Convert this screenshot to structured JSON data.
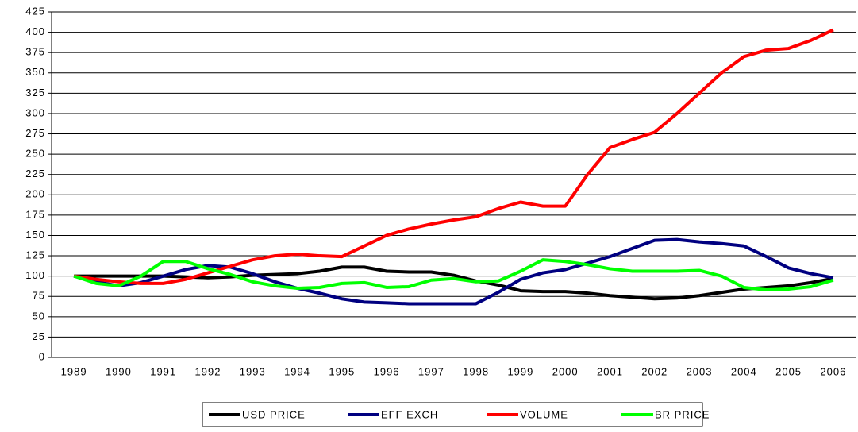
{
  "chart_data": {
    "type": "line",
    "x": [
      1989,
      1989.5,
      1990,
      1990.5,
      1991,
      1991.5,
      1992,
      1992.5,
      1993,
      1993.5,
      1994,
      1994.5,
      1995,
      1995.5,
      1996,
      1996.5,
      1997,
      1997.5,
      1998,
      1998.5,
      1999,
      1999.5,
      2000,
      2000.5,
      2001,
      2001.5,
      2002,
      2002.5,
      2003,
      2003.5,
      2004,
      2004.5,
      2005,
      2005.5,
      2006
    ],
    "xlim": [
      1988.5,
      2006.5
    ],
    "xticks": [
      1989,
      1990,
      1991,
      1992,
      1993,
      1994,
      1995,
      1996,
      1997,
      1998,
      1999,
      2000,
      2001,
      2002,
      2003,
      2004,
      2005,
      2006
    ],
    "ylim": [
      0,
      425
    ],
    "yticks": [
      0,
      25,
      50,
      75,
      100,
      125,
      150,
      175,
      200,
      225,
      250,
      275,
      300,
      325,
      350,
      375,
      400,
      425
    ],
    "grid": true,
    "legend": "bottom",
    "series": [
      {
        "name": "USD PRICE",
        "color": "#000000",
        "values": [
          100,
          100,
          100,
          100,
          100,
          99,
          98,
          99,
          101,
          102,
          103,
          106,
          111,
          111,
          106,
          105,
          105,
          101,
          94,
          89,
          82,
          81,
          81,
          79,
          76,
          74,
          72,
          73,
          76,
          80,
          84,
          86,
          88,
          92,
          97
        ]
      },
      {
        "name": "EFF EXCH",
        "color": "#000080",
        "values": [
          100,
          93,
          88,
          92,
          100,
          108,
          113,
          111,
          103,
          93,
          85,
          79,
          72,
          68,
          67,
          66,
          66,
          66,
          66,
          80,
          96,
          104,
          108,
          116,
          124,
          134,
          144,
          145,
          142,
          140,
          137,
          124,
          110,
          103,
          98
        ]
      },
      {
        "name": "VOLUME",
        "color": "#ff0000",
        "values": [
          100,
          96,
          93,
          91,
          91,
          96,
          104,
          112,
          120,
          125,
          127,
          125,
          124,
          137,
          150,
          158,
          164,
          169,
          173,
          183,
          191,
          186,
          186,
          225,
          258,
          268,
          277,
          300,
          325,
          350,
          370,
          378,
          380,
          390,
          403
        ]
      },
      {
        "name": "BR PRICE",
        "color": "#00ff00",
        "values": [
          100,
          91,
          88,
          100,
          118,
          118,
          109,
          102,
          93,
          88,
          85,
          86,
          91,
          92,
          86,
          87,
          95,
          97,
          93,
          94,
          106,
          120,
          118,
          114,
          109,
          106,
          106,
          106,
          107,
          100,
          86,
          83,
          84,
          87,
          95
        ]
      }
    ]
  }
}
